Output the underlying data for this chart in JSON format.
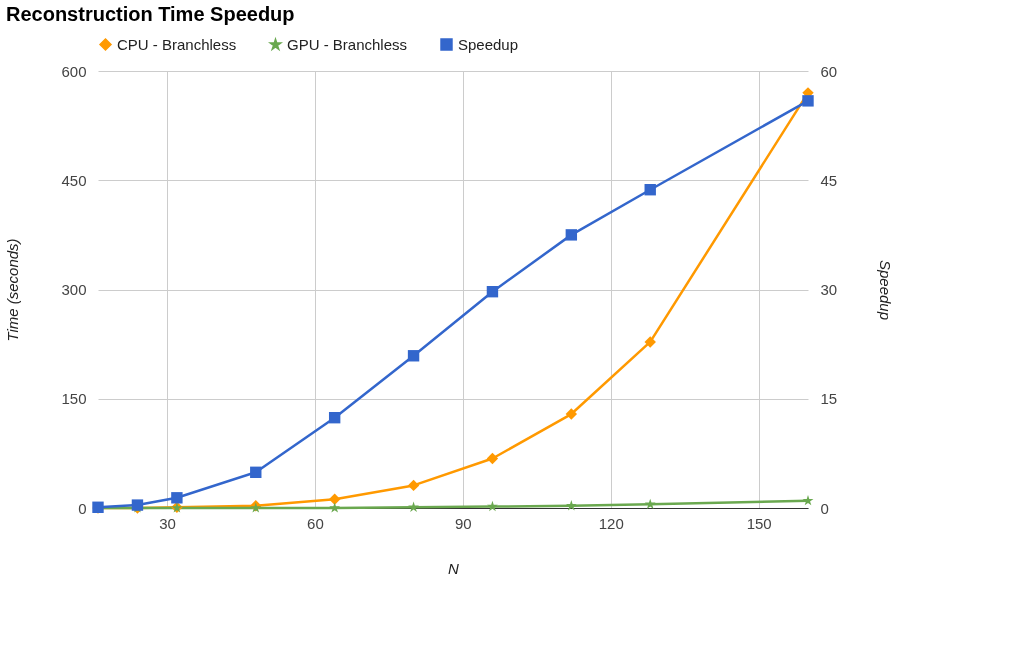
{
  "chart_data": {
    "type": "line",
    "title": "Reconstruction Time Speedup",
    "xlabel": "N",
    "ylabel": "Time (seconds)",
    "y2label": "Speedup",
    "x": [
      16,
      24,
      32,
      48,
      64,
      80,
      96,
      112,
      128,
      160
    ],
    "xlim": [
      16,
      160
    ],
    "xticks": [
      30,
      60,
      90,
      120,
      150
    ],
    "ylim": [
      0,
      600
    ],
    "yticks": [
      0,
      150,
      300,
      450,
      600
    ],
    "y2lim": [
      0,
      60
    ],
    "y2ticks": [
      0,
      15,
      30,
      45,
      60
    ],
    "grid": true,
    "legend": "top",
    "line_style": "solid",
    "series": [
      {
        "name": "CPU - Branchless",
        "color": "#ff9900",
        "marker": "diamond",
        "values": [
          0,
          0,
          1,
          3,
          12,
          31,
          68,
          129,
          228,
          570
        ]
      },
      {
        "name": "GPU - Branchless",
        "color": "#6aa84f",
        "marker": "star",
        "values": [
          0,
          0,
          0,
          0,
          0,
          1,
          2,
          3,
          5,
          10
        ]
      },
      {
        "name": "Speedup",
        "color": "#3366cc",
        "marker": "square",
        "axis": "y2",
        "values": [
          0.1,
          0.4,
          1.4,
          4.9,
          12.4,
          20.9,
          29.7,
          37.5,
          43.7,
          55.9
        ]
      }
    ]
  }
}
